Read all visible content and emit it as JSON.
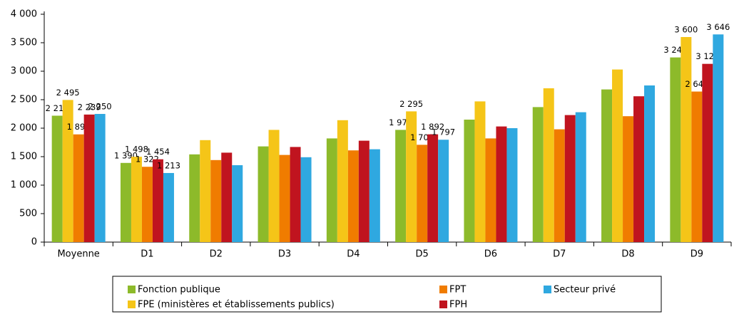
{
  "chart_data": {
    "type": "bar",
    "categories": [
      "Moyenne",
      "D1",
      "D2",
      "D3",
      "D4",
      "D5",
      "D6",
      "D7",
      "D8",
      "D9"
    ],
    "series": [
      {
        "name": "Fonction publique",
        "color": "#8dba2a",
        "values": [
          2219,
          1390,
          1540,
          1680,
          1820,
          1970,
          2150,
          2370,
          2680,
          3242
        ],
        "value_labels": [
          "2 219",
          "1 390",
          null,
          null,
          null,
          "1 970",
          null,
          null,
          null,
          "3 242"
        ]
      },
      {
        "name": "FPE (ministères et établissements publics)",
        "color": "#f5c518",
        "values": [
          2495,
          1498,
          1790,
          1970,
          2140,
          2295,
          2470,
          2700,
          3030,
          3600
        ],
        "value_labels": [
          "2 495",
          "1 498",
          null,
          null,
          null,
          "2 295",
          null,
          null,
          null,
          "3 600"
        ]
      },
      {
        "name": "FPT",
        "color": "#f07c00",
        "values": [
          1891,
          1322,
          1440,
          1530,
          1610,
          1708,
          1820,
          1980,
          2210,
          2643
        ],
        "value_labels": [
          "1 891",
          "1 322",
          null,
          null,
          null,
          "1 708",
          null,
          null,
          null,
          "2 643"
        ]
      },
      {
        "name": "FPH",
        "color": "#c0141f",
        "values": [
          2239,
          1454,
          1570,
          1670,
          1780,
          1892,
          2030,
          2230,
          2560,
          3129
        ],
        "value_labels": [
          "2 239",
          "1 454",
          null,
          null,
          null,
          "1 892",
          null,
          null,
          null,
          "3 129"
        ]
      },
      {
        "name": "Secteur privé",
        "color": "#2fa8e0",
        "values": [
          2250,
          1213,
          1350,
          1490,
          1630,
          1797,
          2000,
          2280,
          2750,
          3646
        ],
        "value_labels": [
          "2 250",
          "1 213",
          null,
          null,
          null,
          "1 797",
          null,
          null,
          null,
          "3 646"
        ]
      }
    ],
    "ylim": [
      0,
      4000
    ],
    "yticks": [
      0,
      500,
      {
        "value": 1000,
        "label": "1 000"
      },
      {
        "value": 1500,
        "label": "1 500"
      },
      {
        "value": 2000,
        "label": "2 000"
      },
      {
        "value": 2500,
        "label": "2 500"
      },
      {
        "value": 3000,
        "label": "3 000"
      },
      {
        "value": 3500,
        "label": "3 500"
      },
      {
        "value": 4000,
        "label": "4 000"
      }
    ],
    "grid": false,
    "legend": "bottom"
  }
}
